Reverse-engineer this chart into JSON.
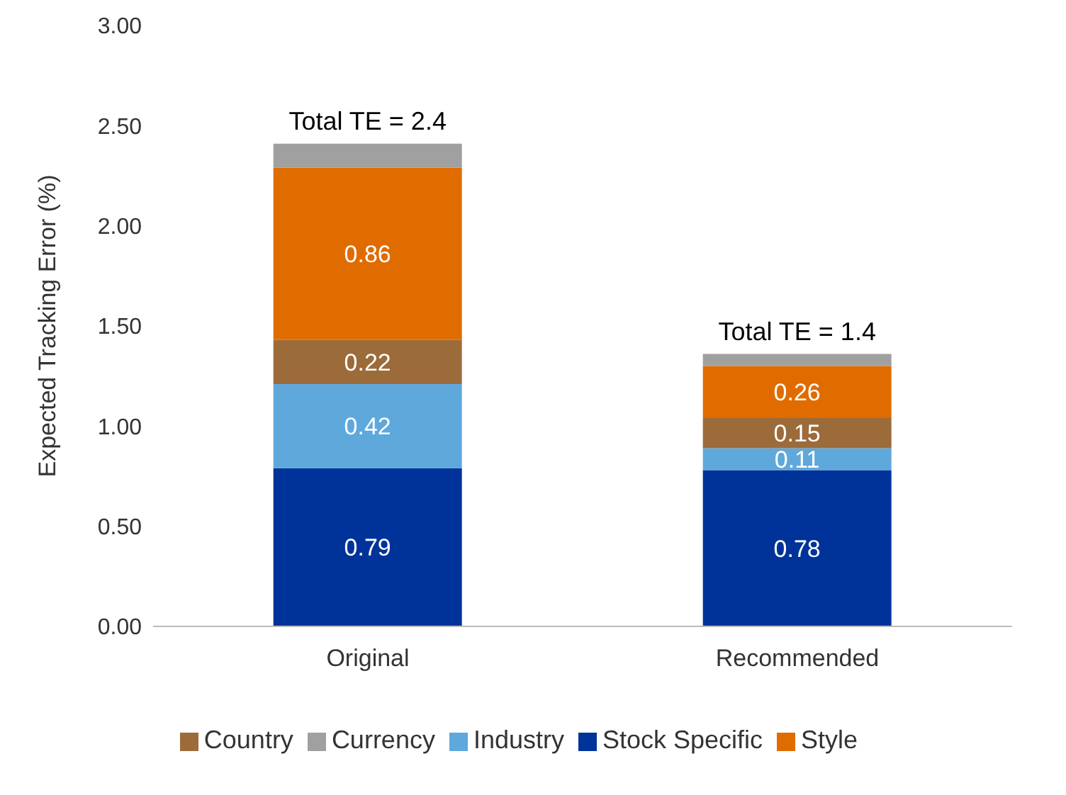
{
  "chart_data": {
    "type": "bar",
    "stacked": true,
    "ylabel": "Expected Tracking Error (%)",
    "categories": [
      "Original",
      "Recommended"
    ],
    "series": [
      {
        "name": "Stock Specific",
        "color": "#003399",
        "values": [
          0.79,
          0.78
        ],
        "value_labels": [
          "0.79",
          "0.78"
        ]
      },
      {
        "name": "Industry",
        "color": "#5fa8dc",
        "values": [
          0.42,
          0.11
        ],
        "value_labels": [
          "0.42",
          "0.11"
        ]
      },
      {
        "name": "Country",
        "color": "#9c6b3a",
        "values": [
          0.22,
          0.15
        ],
        "value_labels": [
          "0.22",
          "0.15"
        ]
      },
      {
        "name": "Style",
        "color": "#e06c00",
        "values": [
          0.86,
          0.26
        ],
        "value_labels": [
          "0.86",
          "0.26"
        ]
      },
      {
        "name": "Currency",
        "color": "#a0a0a0",
        "values": [
          0.12,
          0.06
        ]
      }
    ],
    "totals": [
      "Total TE = 2.4",
      "Total TE = 1.4"
    ],
    "ylim": [
      0,
      3
    ],
    "yticks": [
      {
        "value": 0,
        "label": "0.00"
      },
      {
        "value": 0.5,
        "label": "0.50"
      },
      {
        "value": 1,
        "label": "1.00"
      },
      {
        "value": 1.5,
        "label": "1.50"
      },
      {
        "value": 2,
        "label": "2.00"
      },
      {
        "value": 2.5,
        "label": "2.50"
      },
      {
        "value": 3,
        "label": "3.00"
      }
    ],
    "grid": false,
    "legend": "bottom"
  }
}
